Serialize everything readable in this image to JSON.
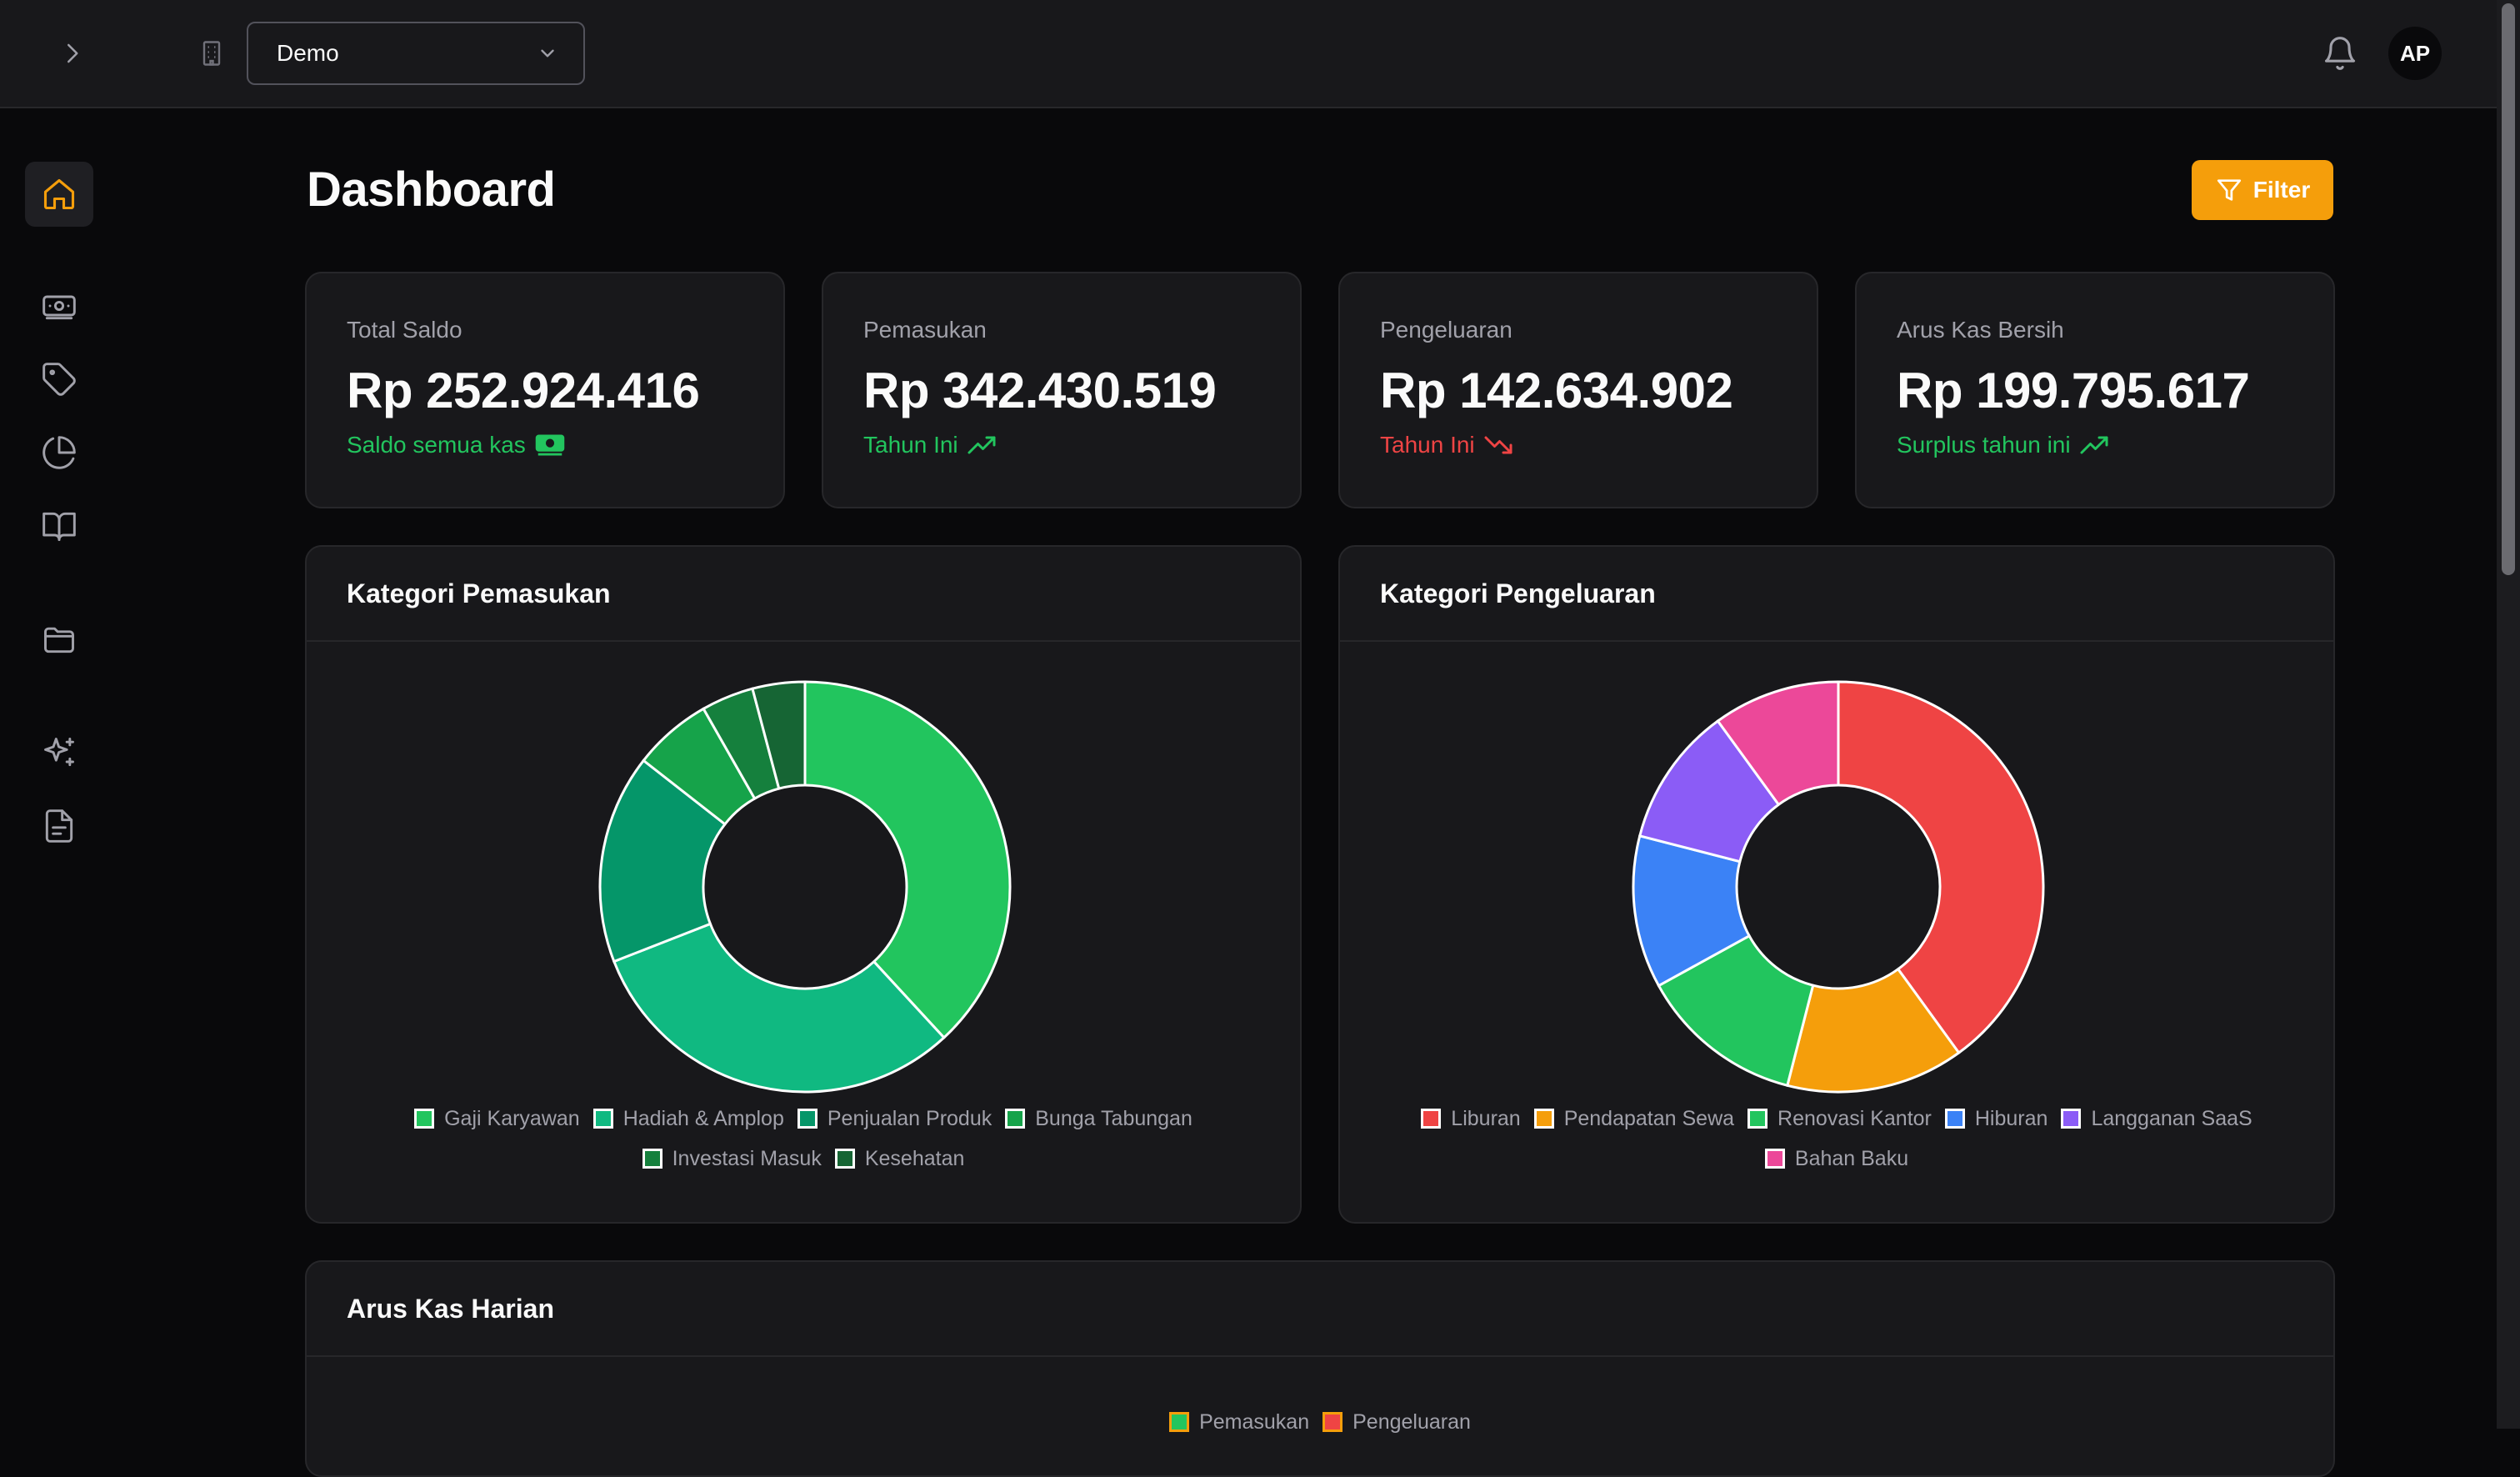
{
  "header": {
    "workspace": "Demo",
    "avatar_initials": "AP",
    "icons": [
      "chevron-right-icon",
      "building-icon",
      "chevron-down-icon",
      "bell-icon"
    ]
  },
  "sidebar": {
    "items": [
      {
        "name": "home",
        "icon": "home-icon",
        "active": true
      },
      {
        "name": "cash",
        "icon": "banknote-icon",
        "active": false
      },
      {
        "name": "tags",
        "icon": "tag-icon",
        "active": false
      },
      {
        "name": "reports",
        "icon": "pie-chart-icon",
        "active": false
      },
      {
        "name": "ledger",
        "icon": "book-open-icon",
        "active": false
      },
      {
        "name": "files",
        "icon": "folder-icon",
        "active": false
      },
      {
        "name": "ai",
        "icon": "sparkles-icon",
        "active": false
      },
      {
        "name": "documents",
        "icon": "file-text-icon",
        "active": false
      }
    ],
    "active_color": "#f59e0b"
  },
  "page": {
    "title": "Dashboard",
    "filter_label": "Filter"
  },
  "stats": [
    {
      "label": "Total Saldo",
      "value": "Rp 252.924.416",
      "sub": "Saldo semua kas",
      "tone": "green",
      "icon": "banknote-icon"
    },
    {
      "label": "Pemasukan",
      "value": "Rp 342.430.519",
      "sub": "Tahun Ini",
      "tone": "green",
      "icon": "trending-up-icon"
    },
    {
      "label": "Pengeluaran",
      "value": "Rp 142.634.902",
      "sub": "Tahun Ini",
      "tone": "red",
      "icon": "trending-down-icon"
    },
    {
      "label": "Arus Kas Bersih",
      "value": "Rp 199.795.617",
      "sub": "Surplus tahun ini",
      "tone": "green",
      "icon": "trending-up-icon"
    }
  ],
  "income_panel": {
    "title": "Kategori Pemasukan"
  },
  "expense_panel": {
    "title": "Kategori Pengeluaran"
  },
  "cashflow_panel": {
    "title": "Arus Kas Harian",
    "legend": [
      {
        "label": "Pemasukan",
        "color": "#22c55e"
      },
      {
        "label": "Pengeluaran",
        "color": "#ef4444"
      }
    ]
  },
  "chart_data": [
    {
      "type": "pie",
      "title": "Kategori Pemasukan",
      "categories": [
        "Gaji Karyawan",
        "Hadiah & Amplop",
        "Penjualan Produk",
        "Bunga Tabungan",
        "Investasi Masuk",
        "Kesehatan"
      ],
      "values": [
        37,
        30,
        16,
        6,
        4,
        4
      ],
      "colors": [
        "#22c55e",
        "#10b981",
        "#059669",
        "#16a34a",
        "#15803d",
        "#166534"
      ],
      "legend": "bottom"
    },
    {
      "type": "pie",
      "title": "Kategori Pengeluaran",
      "categories": [
        "Liburan",
        "Pendapatan Sewa",
        "Renovasi Kantor",
        "Hiburan",
        "Langganan SaaS",
        "Bahan Baku"
      ],
      "values": [
        40,
        14,
        13,
        12,
        11,
        10
      ],
      "colors": [
        "#ef4444",
        "#f59e0b",
        "#22c55e",
        "#3b82f6",
        "#8b5cf6",
        "#ec4899"
      ],
      "legend": "bottom"
    }
  ]
}
